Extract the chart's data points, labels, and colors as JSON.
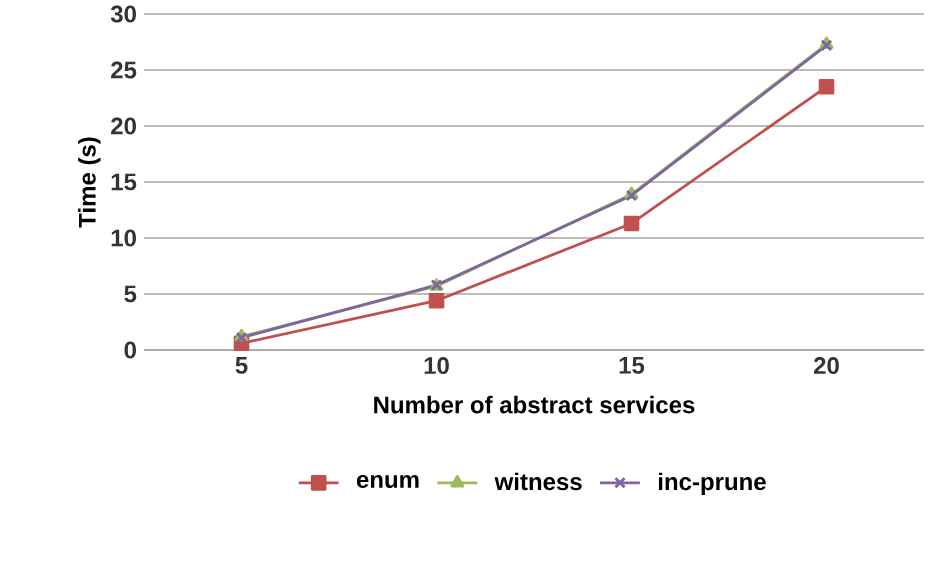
{
  "chart_data": {
    "type": "line",
    "xlabel": "Number of abstract services",
    "ylabel": "Time (s)",
    "categories": [
      "5",
      "10",
      "15",
      "20"
    ],
    "series": [
      {
        "name": "enum",
        "color": "#c0504d",
        "marker": "square",
        "values": [
          0.6,
          4.4,
          11.3,
          23.5
        ]
      },
      {
        "name": "witness",
        "color": "#9bbb59",
        "marker": "triangle",
        "values": [
          1.2,
          5.7,
          13.9,
          27.3
        ]
      },
      {
        "name": "inc-prune",
        "color": "#8064a2",
        "marker": "cross",
        "values": [
          1.1,
          5.8,
          13.8,
          27.2
        ]
      }
    ],
    "ylim": [
      0,
      30
    ],
    "yticks": [
      0,
      5,
      10,
      15,
      20,
      25,
      30
    ],
    "grid": "y",
    "legend": "bottom"
  }
}
